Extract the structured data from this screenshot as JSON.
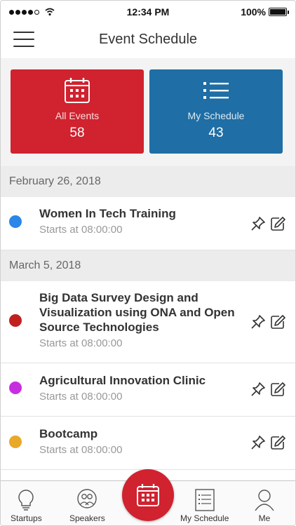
{
  "status_bar": {
    "time": "12:34 PM",
    "battery": "100%"
  },
  "header": {
    "title": "Event Schedule"
  },
  "tiles": [
    {
      "label": "All Events",
      "count": "58",
      "icon": "calendar-icon",
      "color": "#d0222f"
    },
    {
      "label": "My Schedule",
      "count": "43",
      "icon": "list-icon",
      "color": "#1f6ea5"
    }
  ],
  "schedule": [
    {
      "date": "February 26, 2018",
      "events": [
        {
          "title": "Women In Tech Training",
          "time": "Starts at 08:00:00",
          "color": "#2a86e8"
        }
      ]
    },
    {
      "date": "March 5, 2018",
      "events": [
        {
          "title": "Big Data Survey Design and Visualization using ONA and Open Source Technologies",
          "time": "Starts at 08:00:00",
          "color": "#c0211f"
        },
        {
          "title": "Agricultural Innovation Clinic",
          "time": "Starts at 08:00:00",
          "color": "#c62fe0"
        },
        {
          "title": "Bootcamp",
          "time": "Starts at 08:00:00",
          "color": "#e8a82a"
        }
      ]
    }
  ],
  "tabbar": {
    "startups": "Startups",
    "speakers": "Speakers",
    "my_schedule": "My Schedule",
    "me": "Me"
  },
  "colors": {
    "accent": "#d0222f",
    "secondary": "#1f6ea5"
  }
}
